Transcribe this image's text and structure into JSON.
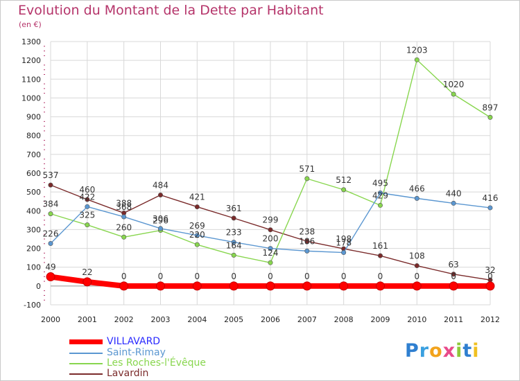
{
  "title": "Evolution du Montant de la Dette par Habitant",
  "unit_label": "(en €)",
  "logo_text": "Proxiti",
  "colors": {
    "title": "#b5346a",
    "axis_text": "#222222",
    "grid": "#d8d8d8",
    "tick": "#b5346a"
  },
  "chart_data": {
    "type": "line",
    "title": "Evolution du Montant de la Dette par Habitant",
    "ylabel": "(en €)",
    "xlabel": "",
    "x": [
      "2000",
      "2001",
      "2002",
      "2003",
      "2004",
      "2005",
      "2006",
      "2007",
      "2008",
      "2009",
      "2010",
      "2011",
      "2012"
    ],
    "ylim": [
      -100,
      1300
    ],
    "yticks": [
      -100,
      0,
      100,
      200,
      300,
      400,
      500,
      600,
      700,
      800,
      900,
      1000,
      1100,
      1200,
      1300
    ],
    "grid": true,
    "legend_position": "bottom-left",
    "series": [
      {
        "name": "VILLAVARD",
        "color": "#ff0000",
        "text_color": "#2a2aff",
        "values": [
          49,
          22,
          0,
          0,
          0,
          0,
          0,
          0,
          0,
          0,
          0,
          0,
          0
        ],
        "labels": [
          "49",
          "22",
          "0",
          "0",
          "0",
          "0",
          "0",
          "0",
          "0",
          "0",
          "0",
          "0",
          "0"
        ]
      },
      {
        "name": "Saint-Rimay",
        "color": "#5b97d1",
        "text_color": "#5b97d1",
        "values": [
          226,
          422,
          368,
          306,
          269,
          233,
          200,
          186,
          178,
          495,
          466,
          440,
          416
        ],
        "labels": [
          "226",
          "422",
          "368",
          "306",
          "269",
          "233",
          "200",
          "186",
          "178",
          "495",
          "466",
          "440",
          "416"
        ]
      },
      {
        "name": "Les Roches-l'Évêque",
        "color": "#88d64e",
        "text_color": "#88d64e",
        "values": [
          384,
          325,
          260,
          296,
          220,
          164,
          124,
          571,
          512,
          429,
          1203,
          1020,
          897
        ],
        "labels": [
          "384",
          "325",
          "260",
          "296",
          "220",
          "164",
          "124",
          "571",
          "512",
          "429",
          "1203",
          "1020",
          "897"
        ]
      },
      {
        "name": "Lavardin",
        "color": "#7a2a2a",
        "text_color": "#7a2a2a",
        "values": [
          537,
          460,
          388,
          484,
          421,
          361,
          299,
          238,
          198,
          161,
          108,
          63,
          32
        ],
        "labels": [
          "537",
          "460",
          "388",
          "484",
          "421",
          "361",
          "299",
          "238",
          "198",
          "161",
          "108",
          "63",
          "32"
        ]
      }
    ]
  }
}
